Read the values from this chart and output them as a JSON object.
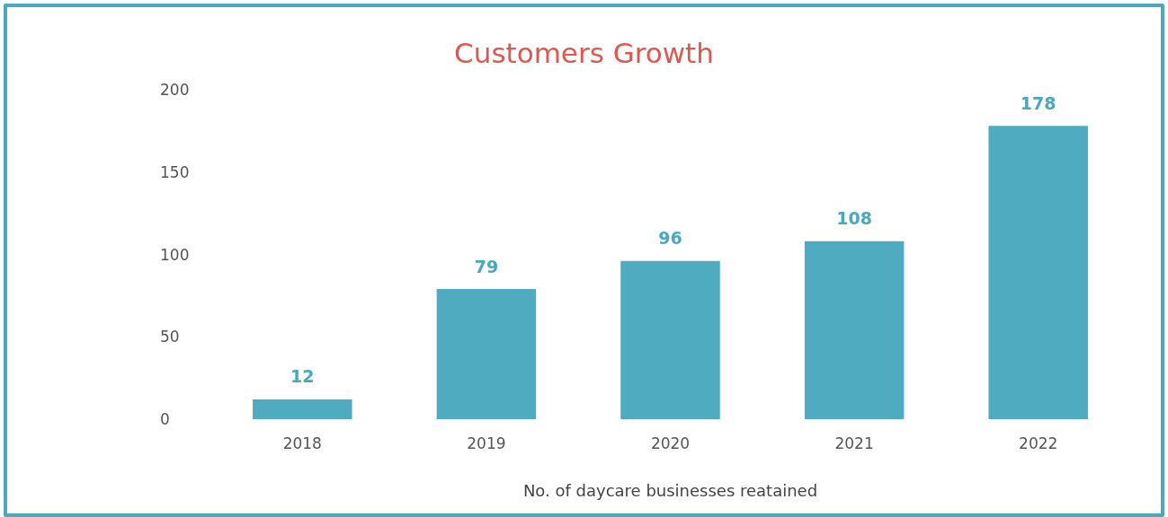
{
  "chart_data": {
    "type": "bar",
    "title": "Customers Growth",
    "xlabel": "No. of daycare businesses reatained",
    "categories": [
      "2018",
      "2019",
      "2020",
      "2021",
      "2022"
    ],
    "values": [
      12,
      79,
      96,
      108,
      178
    ],
    "color": "#4eabc0",
    "ylim": [
      0,
      200
    ],
    "yticks": [
      0,
      50,
      100,
      150,
      200
    ],
    "grid": false,
    "data_labels": true
  }
}
